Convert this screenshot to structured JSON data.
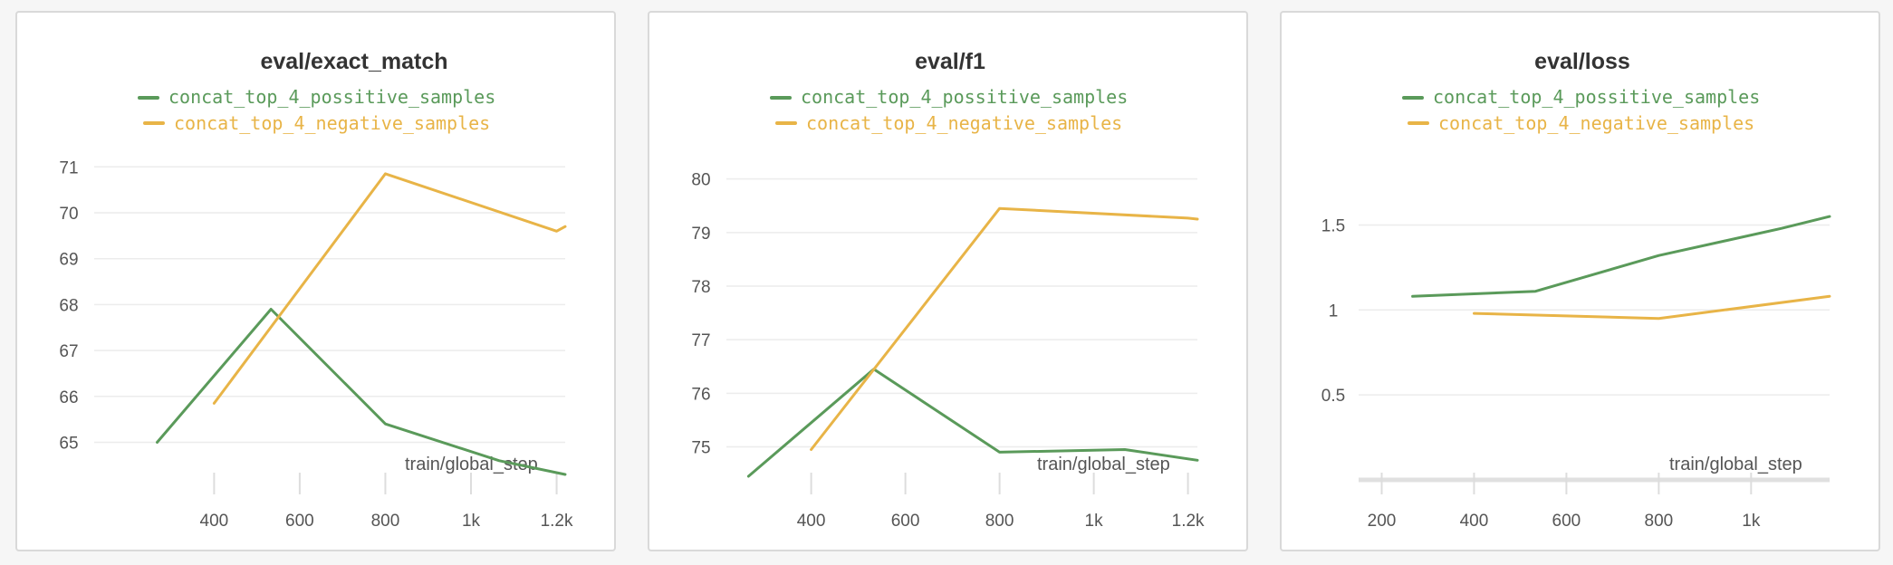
{
  "colors": {
    "positive": "#5a9a5a",
    "negative": "#e8b447"
  },
  "chart_data": [
    {
      "type": "line",
      "title": "eval/exact_match",
      "xlabel": "train/global_step",
      "ylabel": "",
      "xlim": [
        120,
        1220
      ],
      "ylim": [
        64.3,
        71.4
      ],
      "x_ticks": [
        400,
        600,
        800,
        1000,
        1200
      ],
      "x_tick_labels": [
        "400",
        "600",
        "800",
        "1k",
        "1.2k"
      ],
      "y_ticks": [
        65,
        66,
        67,
        68,
        69,
        70,
        71
      ],
      "y_tick_labels": [
        "65",
        "66",
        "67",
        "68",
        "69",
        "70",
        "71"
      ],
      "grid": true,
      "legend_position": "top-center",
      "series": [
        {
          "name": "concat_top_4_possitive_samples",
          "color": "#5a9a5a",
          "x": [
            267,
            533,
            800,
            1066,
            1220
          ],
          "y": [
            65.0,
            67.9,
            65.4,
            64.6,
            64.3
          ]
        },
        {
          "name": "concat_top_4_negative_samples",
          "color": "#e8b447",
          "x": [
            400,
            800,
            1200,
            1220
          ],
          "y": [
            65.85,
            70.85,
            69.6,
            69.7
          ]
        }
      ]
    },
    {
      "type": "line",
      "title": "eval/f1",
      "xlabel": "train/global_step",
      "ylabel": "",
      "xlim": [
        220,
        1220
      ],
      "ylim": [
        74.4,
        80.4
      ],
      "x_ticks": [
        400,
        600,
        800,
        1000,
        1200
      ],
      "x_tick_labels": [
        "400",
        "600",
        "800",
        "1k",
        "1.2k"
      ],
      "y_ticks": [
        75,
        76,
        77,
        78,
        79,
        80
      ],
      "y_tick_labels": [
        "75",
        "76",
        "77",
        "78",
        "79",
        "80"
      ],
      "grid": true,
      "legend_position": "top-center",
      "series": [
        {
          "name": "concat_top_4_possitive_samples",
          "color": "#5a9a5a",
          "x": [
            267,
            533,
            800,
            1066,
            1220
          ],
          "y": [
            74.45,
            76.45,
            74.9,
            74.95,
            74.75
          ]
        },
        {
          "name": "concat_top_4_negative_samples",
          "color": "#e8b447",
          "x": [
            400,
            800,
            1200,
            1220
          ],
          "y": [
            74.95,
            79.45,
            79.27,
            79.25
          ]
        }
      ]
    },
    {
      "type": "line",
      "title": "eval/loss",
      "xlabel": "train/global_step",
      "ylabel": "",
      "xlim": [
        150,
        1170
      ],
      "ylim": [
        0.0,
        1.95
      ],
      "x_ticks": [
        200,
        400,
        600,
        800,
        1000
      ],
      "x_tick_labels": [
        "200",
        "400",
        "600",
        "800",
        "1k"
      ],
      "y_ticks": [
        0.5,
        1,
        1.5
      ],
      "y_tick_labels": [
        "0.5",
        "1",
        "1.5"
      ],
      "grid": true,
      "legend_position": "top-center",
      "series": [
        {
          "name": "concat_top_4_possitive_samples",
          "color": "#5a9a5a",
          "x": [
            267,
            533,
            800,
            1066,
            1170
          ],
          "y": [
            1.08,
            1.11,
            1.32,
            1.48,
            1.55
          ]
        },
        {
          "name": "concat_top_4_negative_samples",
          "color": "#e8b447",
          "x": [
            400,
            800,
            1170
          ],
          "y": [
            0.98,
            0.95,
            1.08
          ]
        }
      ]
    }
  ]
}
